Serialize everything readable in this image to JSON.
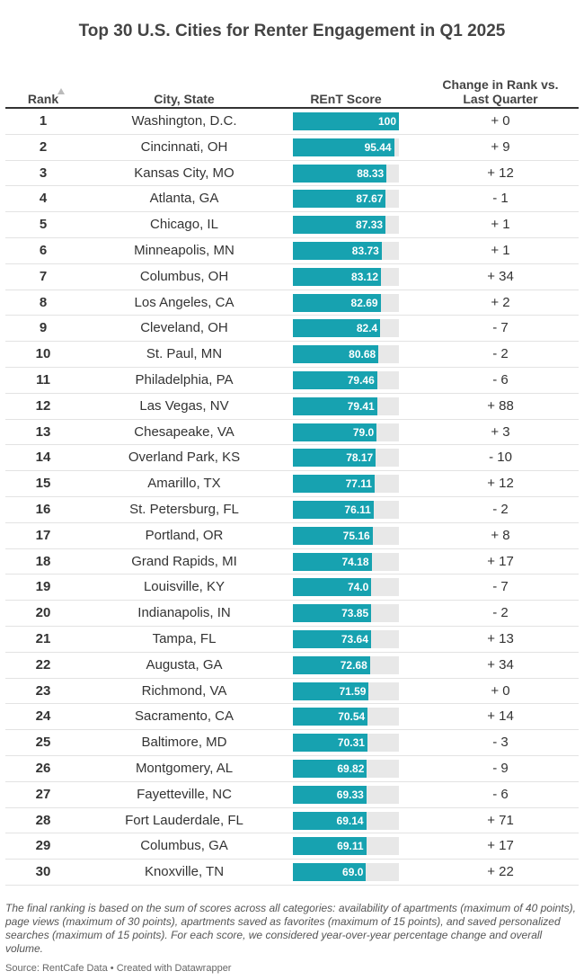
{
  "title": "Top 30 U.S. Cities for Renter Engagement in Q1 2025",
  "table": {
    "columns": [
      "Rank",
      "City, State",
      "REnT Score",
      "Change in Rank vs. Last Quarter"
    ],
    "rows": [
      [
        1,
        "Washington, D.C.",
        "100",
        "+ 0"
      ],
      [
        2,
        "Cincinnati, OH",
        "95.44",
        "+ 9"
      ],
      [
        3,
        "Kansas City, MO",
        "88.33",
        "+ 12"
      ],
      [
        4,
        "Atlanta, GA",
        "87.67",
        "- 1"
      ],
      [
        5,
        "Chicago, IL",
        "87.33",
        "+ 1"
      ],
      [
        6,
        "Minneapolis, MN",
        "83.73",
        "+ 1"
      ],
      [
        7,
        "Columbus, OH",
        "83.12",
        "+ 34"
      ],
      [
        8,
        "Los Angeles, CA",
        "82.69",
        "+ 2"
      ],
      [
        9,
        "Cleveland, OH",
        "82.4",
        "- 7"
      ],
      [
        10,
        "St. Paul, MN",
        "80.68",
        "- 2"
      ],
      [
        11,
        "Philadelphia, PA",
        "79.46",
        "- 6"
      ],
      [
        12,
        "Las Vegas, NV",
        "79.41",
        "+ 88"
      ],
      [
        13,
        "Chesapeake, VA",
        "79.0",
        "+ 3"
      ],
      [
        14,
        "Overland Park, KS",
        "78.17",
        "- 10"
      ],
      [
        15,
        "Amarillo, TX",
        "77.11",
        "+ 12"
      ],
      [
        16,
        "St. Petersburg, FL",
        "76.11",
        "- 2"
      ],
      [
        17,
        "Portland, OR",
        "75.16",
        "+ 8"
      ],
      [
        18,
        "Grand Rapids, MI",
        "74.18",
        "+ 17"
      ],
      [
        19,
        "Louisville, KY",
        "74.0",
        "- 7"
      ],
      [
        20,
        "Indianapolis, IN",
        "73.85",
        "- 2"
      ],
      [
        21,
        "Tampa, FL",
        "73.64",
        "+ 13"
      ],
      [
        22,
        "Augusta, GA",
        "72.68",
        "+ 34"
      ],
      [
        23,
        "Richmond, VA",
        "71.59",
        "+ 0"
      ],
      [
        24,
        "Sacramento, CA",
        "70.54",
        "+ 14"
      ],
      [
        25,
        "Baltimore, MD",
        "70.31",
        "- 3"
      ],
      [
        26,
        "Montgomery, AL",
        "69.82",
        "- 9"
      ],
      [
        27,
        "Fayetteville, NC",
        "69.33",
        "- 6"
      ],
      [
        28,
        "Fort Lauderdale, FL",
        "69.14",
        "+ 71"
      ],
      [
        29,
        "Columbus, GA",
        "69.11",
        "+ 17"
      ],
      [
        30,
        "Knoxville, TN",
        "69.0",
        "+ 22"
      ]
    ]
  },
  "notes": "The final ranking is based on the sum of scores across all categories: availability of apartments (maximum of 40 points), page views (maximum of 30 points), apartments saved as favorites (maximum of 15 points), and saved personalized searches (maximum of 15 points). For each score, we considered year-over-year percentage change and overall volume.",
  "source": "Source: RentCafe Data • Created with Datawrapper"
}
